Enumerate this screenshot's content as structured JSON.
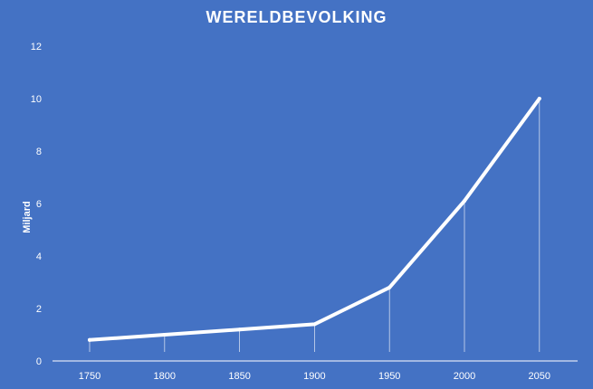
{
  "chart_data": {
    "type": "line",
    "title": "WERELDBEVOLKING",
    "xlabel": "",
    "ylabel": "Miljard",
    "categories": [
      "1750",
      "1800",
      "1850",
      "1900",
      "1950",
      "2000",
      "2050"
    ],
    "series": [
      {
        "values": [
          0.8,
          1.0,
          1.2,
          1.4,
          2.8,
          6.1,
          10.0
        ]
      }
    ],
    "ylim": [
      0,
      12
    ],
    "yticks": [
      0,
      2,
      4,
      6,
      8,
      10,
      12
    ],
    "grid": false,
    "drop_lines": true,
    "legend": "none",
    "colors": {
      "background": "#4472c4",
      "line": "#ffffff",
      "text": "#ffffff",
      "axis": "#ffffff"
    }
  }
}
